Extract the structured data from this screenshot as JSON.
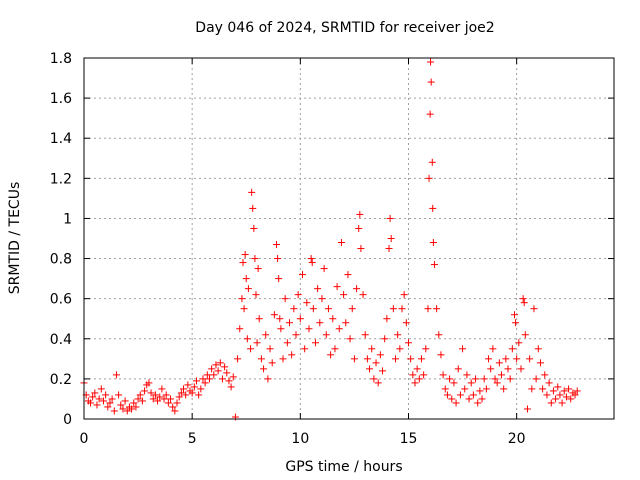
{
  "chart_data": {
    "type": "scatter",
    "title": "Day 046 of 2024, SRMTID for receiver joe2",
    "xlabel": "GPS time / hours",
    "ylabel": "SRMTID / TECUs",
    "xlim": [
      0,
      24.5
    ],
    "ylim": [
      0,
      1.8
    ],
    "xticks": [
      0,
      5,
      10,
      15,
      20
    ],
    "xtick_labels": [
      "0",
      "5",
      "10",
      "15",
      "20"
    ],
    "yticks": [
      0,
      0.2,
      0.4,
      0.6,
      0.8,
      1.0,
      1.2,
      1.4,
      1.6,
      1.8
    ],
    "ytick_labels": [
      "0",
      "0.2",
      "0.4",
      "0.6",
      "0.8",
      "1",
      "1.2",
      "1.4",
      "1.6",
      "1.8"
    ],
    "grid": true,
    "marker": "+",
    "color": "#ff0000",
    "series": [
      {
        "name": "SRMTID",
        "points": [
          [
            0.0,
            0.18
          ],
          [
            0.1,
            0.12
          ],
          [
            0.2,
            0.09
          ],
          [
            0.3,
            0.08
          ],
          [
            0.4,
            0.11
          ],
          [
            0.5,
            0.13
          ],
          [
            0.6,
            0.07
          ],
          [
            0.7,
            0.1
          ],
          [
            0.8,
            0.15
          ],
          [
            0.9,
            0.09
          ],
          [
            1.0,
            0.12
          ],
          [
            1.1,
            0.06
          ],
          [
            1.2,
            0.08
          ],
          [
            1.3,
            0.1
          ],
          [
            1.4,
            0.04
          ],
          [
            1.5,
            0.22
          ],
          [
            1.6,
            0.12
          ],
          [
            1.7,
            0.07
          ],
          [
            1.8,
            0.05
          ],
          [
            1.9,
            0.09
          ],
          [
            2.0,
            0.04
          ],
          [
            2.1,
            0.06
          ],
          [
            2.2,
            0.05
          ],
          [
            2.3,
            0.08
          ],
          [
            2.4,
            0.06
          ],
          [
            2.5,
            0.1
          ],
          [
            2.6,
            0.12
          ],
          [
            2.7,
            0.09
          ],
          [
            2.8,
            0.14
          ],
          [
            2.9,
            0.17
          ],
          [
            3.0,
            0.18
          ],
          [
            3.1,
            0.13
          ],
          [
            3.2,
            0.1
          ],
          [
            3.3,
            0.12
          ],
          [
            3.4,
            0.09
          ],
          [
            3.5,
            0.11
          ],
          [
            3.6,
            0.15
          ],
          [
            3.7,
            0.1
          ],
          [
            3.8,
            0.12
          ],
          [
            3.9,
            0.08
          ],
          [
            4.0,
            0.1
          ],
          [
            4.1,
            0.06
          ],
          [
            4.2,
            0.04
          ],
          [
            4.3,
            0.08
          ],
          [
            4.4,
            0.11
          ],
          [
            4.5,
            0.13
          ],
          [
            4.6,
            0.15
          ],
          [
            4.7,
            0.12
          ],
          [
            4.8,
            0.17
          ],
          [
            4.9,
            0.14
          ],
          [
            5.0,
            0.13
          ],
          [
            5.1,
            0.16
          ],
          [
            5.2,
            0.19
          ],
          [
            5.3,
            0.12
          ],
          [
            5.4,
            0.15
          ],
          [
            5.5,
            0.2
          ],
          [
            5.6,
            0.18
          ],
          [
            5.7,
            0.22
          ],
          [
            5.8,
            0.2
          ],
          [
            5.9,
            0.25
          ],
          [
            6.0,
            0.22
          ],
          [
            6.1,
            0.27
          ],
          [
            6.2,
            0.24
          ],
          [
            6.3,
            0.28
          ],
          [
            6.4,
            0.2
          ],
          [
            6.5,
            0.26
          ],
          [
            6.6,
            0.23
          ],
          [
            6.7,
            0.19
          ],
          [
            6.8,
            0.16
          ],
          [
            6.9,
            0.21
          ],
          [
            7.0,
            0.01
          ],
          [
            7.1,
            0.3
          ],
          [
            7.2,
            0.45
          ],
          [
            7.3,
            0.6
          ],
          [
            7.35,
            0.78
          ],
          [
            7.4,
            0.55
          ],
          [
            7.45,
            0.82
          ],
          [
            7.5,
            0.7
          ],
          [
            7.55,
            0.4
          ],
          [
            7.6,
            0.65
          ],
          [
            7.7,
            0.35
          ],
          [
            7.75,
            1.13
          ],
          [
            7.8,
            1.05
          ],
          [
            7.85,
            0.95
          ],
          [
            7.9,
            0.8
          ],
          [
            7.95,
            0.62
          ],
          [
            8.0,
            0.38
          ],
          [
            8.05,
            0.75
          ],
          [
            8.1,
            0.5
          ],
          [
            8.2,
            0.3
          ],
          [
            8.3,
            0.25
          ],
          [
            8.4,
            0.42
          ],
          [
            8.5,
            0.2
          ],
          [
            8.6,
            0.35
          ],
          [
            8.7,
            0.28
          ],
          [
            8.8,
            0.52
          ],
          [
            8.9,
            0.87
          ],
          [
            8.95,
            0.8
          ],
          [
            9.0,
            0.7
          ],
          [
            9.05,
            0.5
          ],
          [
            9.1,
            0.45
          ],
          [
            9.2,
            0.3
          ],
          [
            9.3,
            0.6
          ],
          [
            9.4,
            0.38
          ],
          [
            9.5,
            0.48
          ],
          [
            9.6,
            0.32
          ],
          [
            9.7,
            0.55
          ],
          [
            9.8,
            0.42
          ],
          [
            9.9,
            0.62
          ],
          [
            10.0,
            0.5
          ],
          [
            10.1,
            0.72
          ],
          [
            10.2,
            0.35
          ],
          [
            10.3,
            0.58
          ],
          [
            10.4,
            0.45
          ],
          [
            10.5,
            0.8
          ],
          [
            10.55,
            0.78
          ],
          [
            10.6,
            0.55
          ],
          [
            10.7,
            0.38
          ],
          [
            10.8,
            0.65
          ],
          [
            10.9,
            0.48
          ],
          [
            11.0,
            0.6
          ],
          [
            11.1,
            0.75
          ],
          [
            11.2,
            0.42
          ],
          [
            11.3,
            0.55
          ],
          [
            11.4,
            0.32
          ],
          [
            11.5,
            0.5
          ],
          [
            11.6,
            0.35
          ],
          [
            11.7,
            0.66
          ],
          [
            11.8,
            0.45
          ],
          [
            11.9,
            0.88
          ],
          [
            12.0,
            0.62
          ],
          [
            12.1,
            0.48
          ],
          [
            12.2,
            0.72
          ],
          [
            12.3,
            0.4
          ],
          [
            12.4,
            0.55
          ],
          [
            12.5,
            0.3
          ],
          [
            12.6,
            0.65
          ],
          [
            12.7,
            0.95
          ],
          [
            12.75,
            1.02
          ],
          [
            12.8,
            0.85
          ],
          [
            12.9,
            0.62
          ],
          [
            13.0,
            0.42
          ],
          [
            13.1,
            0.3
          ],
          [
            13.2,
            0.25
          ],
          [
            13.3,
            0.35
          ],
          [
            13.4,
            0.2
          ],
          [
            13.5,
            0.28
          ],
          [
            13.6,
            0.18
          ],
          [
            13.7,
            0.32
          ],
          [
            13.8,
            0.24
          ],
          [
            13.9,
            0.4
          ],
          [
            14.0,
            0.5
          ],
          [
            14.1,
            0.85
          ],
          [
            14.15,
            1.0
          ],
          [
            14.2,
            0.9
          ],
          [
            14.3,
            0.55
          ],
          [
            14.4,
            0.3
          ],
          [
            14.5,
            0.42
          ],
          [
            14.6,
            0.35
          ],
          [
            14.7,
            0.55
          ],
          [
            14.8,
            0.62
          ],
          [
            14.9,
            0.48
          ],
          [
            15.0,
            0.38
          ],
          [
            15.1,
            0.3
          ],
          [
            15.2,
            0.22
          ],
          [
            15.3,
            0.18
          ],
          [
            15.4,
            0.25
          ],
          [
            15.5,
            0.2
          ],
          [
            15.6,
            0.3
          ],
          [
            15.7,
            0.22
          ],
          [
            15.8,
            0.35
          ],
          [
            15.9,
            0.55
          ],
          [
            15.95,
            1.2
          ],
          [
            16.0,
            1.52
          ],
          [
            16.02,
            1.78
          ],
          [
            16.05,
            1.68
          ],
          [
            16.1,
            1.28
          ],
          [
            16.12,
            1.05
          ],
          [
            16.15,
            0.88
          ],
          [
            16.2,
            0.77
          ],
          [
            16.3,
            0.55
          ],
          [
            16.4,
            0.42
          ],
          [
            16.5,
            0.32
          ],
          [
            16.6,
            0.22
          ],
          [
            16.7,
            0.15
          ],
          [
            16.8,
            0.12
          ],
          [
            16.9,
            0.2
          ],
          [
            17.0,
            0.1
          ],
          [
            17.1,
            0.18
          ],
          [
            17.2,
            0.08
          ],
          [
            17.3,
            0.25
          ],
          [
            17.4,
            0.12
          ],
          [
            17.5,
            0.35
          ],
          [
            17.6,
            0.15
          ],
          [
            17.7,
            0.22
          ],
          [
            17.8,
            0.1
          ],
          [
            17.9,
            0.18
          ],
          [
            18.0,
            0.12
          ],
          [
            18.1,
            0.2
          ],
          [
            18.2,
            0.08
          ],
          [
            18.3,
            0.14
          ],
          [
            18.4,
            0.1
          ],
          [
            18.5,
            0.2
          ],
          [
            18.6,
            0.15
          ],
          [
            18.7,
            0.3
          ],
          [
            18.8,
            0.25
          ],
          [
            18.9,
            0.35
          ],
          [
            19.0,
            0.2
          ],
          [
            19.1,
            0.18
          ],
          [
            19.2,
            0.28
          ],
          [
            19.3,
            0.22
          ],
          [
            19.4,
            0.15
          ],
          [
            19.5,
            0.3
          ],
          [
            19.6,
            0.25
          ],
          [
            19.7,
            0.2
          ],
          [
            19.8,
            0.35
          ],
          [
            19.9,
            0.52
          ],
          [
            19.95,
            0.48
          ],
          [
            20.0,
            0.3
          ],
          [
            20.1,
            0.38
          ],
          [
            20.2,
            0.25
          ],
          [
            20.3,
            0.6
          ],
          [
            20.35,
            0.58
          ],
          [
            20.4,
            0.42
          ],
          [
            20.5,
            0.05
          ],
          [
            20.6,
            0.3
          ],
          [
            20.7,
            0.15
          ],
          [
            20.8,
            0.55
          ],
          [
            20.9,
            0.2
          ],
          [
            21.0,
            0.35
          ],
          [
            21.1,
            0.28
          ],
          [
            21.2,
            0.15
          ],
          [
            21.3,
            0.22
          ],
          [
            21.4,
            0.12
          ],
          [
            21.5,
            0.18
          ],
          [
            21.6,
            0.08
          ],
          [
            21.7,
            0.14
          ],
          [
            21.8,
            0.1
          ],
          [
            21.9,
            0.16
          ],
          [
            22.0,
            0.12
          ],
          [
            22.1,
            0.08
          ],
          [
            22.2,
            0.14
          ],
          [
            22.3,
            0.11
          ],
          [
            22.4,
            0.15
          ],
          [
            22.5,
            0.1
          ],
          [
            22.6,
            0.13
          ],
          [
            22.7,
            0.12
          ],
          [
            22.8,
            0.14
          ]
        ]
      }
    ]
  }
}
